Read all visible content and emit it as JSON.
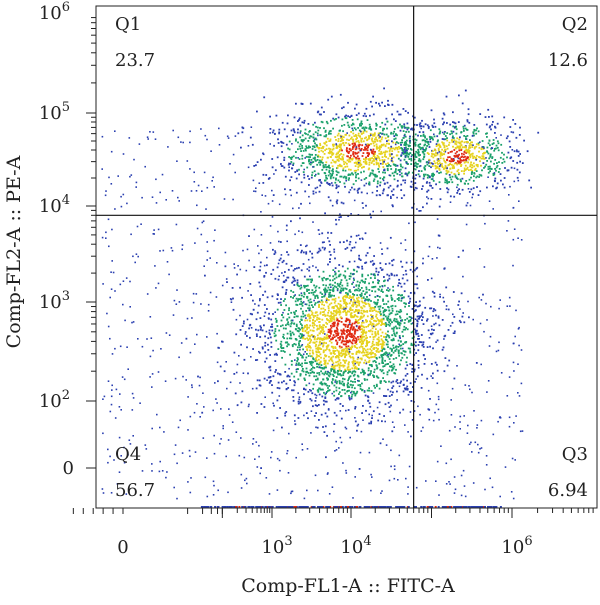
{
  "chart_data": {
    "type": "scatter",
    "title": "",
    "xlabel": "Comp-FL1-A :: FITC-A",
    "ylabel": "Comp-FL2-A :: PE-A",
    "x_scale": "biexponential",
    "y_scale": "biexponential",
    "x_ticks": [
      {
        "value": 0,
        "label": "0"
      },
      {
        "value": 1000,
        "label": "10",
        "exp": "3"
      },
      {
        "value": 10000,
        "label": "10",
        "exp": "4"
      },
      {
        "value": 1000000,
        "label": "10",
        "exp": "6"
      }
    ],
    "y_ticks": [
      {
        "value": 0,
        "label": "0"
      },
      {
        "value": 100,
        "label": "10",
        "exp": "2"
      },
      {
        "value": 1000,
        "label": "10",
        "exp": "3"
      },
      {
        "value": 10000,
        "label": "10",
        "exp": "4"
      },
      {
        "value": 100000,
        "label": "10",
        "exp": "5"
      },
      {
        "value": 1000000,
        "label": "10",
        "exp": "6"
      }
    ],
    "gates": {
      "x": 60000,
      "y": 8000
    },
    "quadrants": [
      {
        "id": "Q1",
        "label": "Q1",
        "percent": "23.7"
      },
      {
        "id": "Q2",
        "label": "Q2",
        "percent": "12.6"
      },
      {
        "id": "Q3",
        "label": "Q3",
        "percent": "6.94"
      },
      {
        "id": "Q4",
        "label": "Q4",
        "percent": "56.7"
      }
    ],
    "populations": [
      {
        "quadrant": "Q4",
        "center_x": 8000,
        "center_y": 500
      },
      {
        "quadrant": "Q1",
        "center_x": 12000,
        "center_y": 40000
      },
      {
        "quadrant": "Q2",
        "center_x": 200000,
        "center_y": 35000
      }
    ],
    "colors": {
      "low": "#2a3fb0",
      "mid": "#1aa06a",
      "high": "#e6d21e",
      "peak": "#e02a12"
    }
  }
}
